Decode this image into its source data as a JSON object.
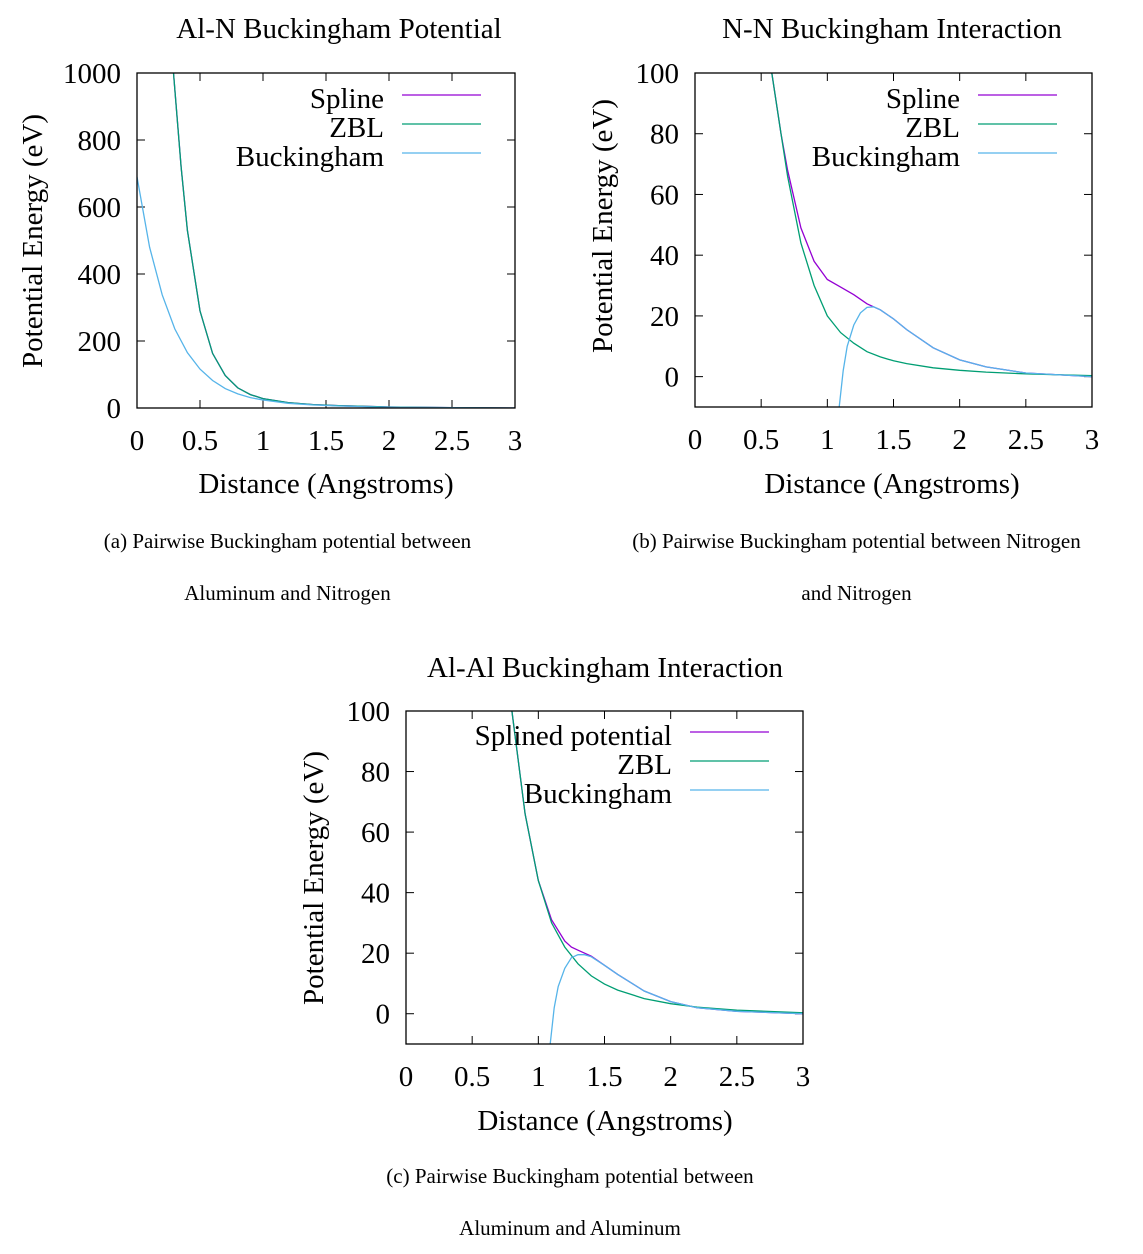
{
  "colors": {
    "spline": "#9400d3",
    "zbl": "#009e73",
    "buckingham": "#56b4e9",
    "axis": "#000000"
  },
  "chart_data": [
    {
      "type": "line",
      "title": "Al-N Buckingham Potential",
      "xlabel": "Distance (Angstroms)",
      "ylabel": "Potential Energy (eV)",
      "xlim": [
        0,
        3
      ],
      "ylim": [
        0,
        1000
      ],
      "xticks": [
        "0",
        "0.5",
        "1",
        "1.5",
        "2",
        "2.5",
        "3"
      ],
      "yticks": [
        "0",
        "200",
        "400",
        "600",
        "800",
        "1000"
      ],
      "xtick_values": [
        0,
        0.5,
        1,
        1.5,
        2,
        2.5,
        3
      ],
      "ytick_values": [
        0,
        200,
        400,
        600,
        800,
        1000
      ],
      "grid": false,
      "legend_position": "top-right",
      "series": [
        {
          "name": "Spline",
          "color": "#9400d3",
          "x": [
            0.29,
            0.35,
            0.4,
            0.5,
            0.6,
            0.7,
            0.8,
            0.9,
            1.0,
            1.2,
            1.4,
            1.6,
            2.0,
            2.5,
            3.0
          ],
          "y": [
            1000,
            720,
            530,
            290,
            163,
            97,
            60,
            40,
            28,
            16,
            10,
            7,
            3,
            1,
            0
          ]
        },
        {
          "name": "ZBL",
          "color": "#009e73",
          "x": [
            0.29,
            0.35,
            0.4,
            0.5,
            0.6,
            0.7,
            0.8,
            0.9,
            1.0,
            1.2,
            1.4,
            1.6,
            2.0,
            2.5,
            3.0
          ],
          "y": [
            1000,
            720,
            530,
            290,
            163,
            97,
            60,
            40,
            28,
            16,
            10,
            7,
            3,
            1,
            0
          ]
        },
        {
          "name": "Buckingham",
          "color": "#56b4e9",
          "x": [
            0.0,
            0.1,
            0.2,
            0.3,
            0.4,
            0.5,
            0.6,
            0.7,
            0.8,
            0.9,
            1.0,
            1.2,
            1.4,
            1.6,
            2.0,
            2.5,
            3.0
          ],
          "y": [
            690,
            480,
            338,
            236,
            165,
            116,
            82,
            58,
            42,
            31,
            24,
            14,
            9,
            6,
            2,
            1,
            0
          ]
        }
      ]
    },
    {
      "type": "line",
      "title": "N-N Buckingham Interaction",
      "xlabel": "Distance (Angstroms)",
      "ylabel": "Potential Energy (eV)",
      "xlim": [
        0,
        3
      ],
      "ylim": [
        -10,
        100
      ],
      "xticks": [
        "0",
        "0.5",
        "1",
        "1.5",
        "2",
        "2.5",
        "3"
      ],
      "yticks": [
        "0",
        "20",
        "40",
        "60",
        "80",
        "100"
      ],
      "xtick_values": [
        0,
        0.5,
        1,
        1.5,
        2,
        2.5,
        3
      ],
      "ytick_values": [
        0,
        20,
        40,
        60,
        80,
        100
      ],
      "grid": false,
      "legend_position": "top-right",
      "series": [
        {
          "name": "Spline",
          "color": "#9400d3",
          "x": [
            0.58,
            0.65,
            0.7,
            0.8,
            0.9,
            1.0,
            1.1,
            1.2,
            1.3,
            1.35,
            1.4,
            1.5,
            1.6,
            1.8,
            2.0,
            2.2,
            2.5,
            3.0
          ],
          "y": [
            100,
            80,
            68,
            49,
            38,
            32,
            29.5,
            27,
            24,
            23,
            22,
            19,
            15.5,
            9.5,
            5.5,
            3.2,
            1.2,
            0
          ]
        },
        {
          "name": "ZBL",
          "color": "#009e73",
          "x": [
            0.58,
            0.65,
            0.7,
            0.8,
            0.9,
            1.0,
            1.1,
            1.2,
            1.3,
            1.4,
            1.5,
            1.6,
            1.8,
            2.0,
            2.2,
            2.5,
            3.0
          ],
          "y": [
            100,
            80,
            66,
            44,
            30,
            20,
            14.5,
            11,
            8.2,
            6.5,
            5.2,
            4.3,
            2.9,
            2.1,
            1.5,
            0.9,
            0.3
          ]
        },
        {
          "name": "Buckingham",
          "color": "#56b4e9",
          "x": [
            1.09,
            1.12,
            1.15,
            1.2,
            1.25,
            1.3,
            1.35,
            1.4,
            1.5,
            1.6,
            1.8,
            2.0,
            2.2,
            2.5,
            3.0
          ],
          "y": [
            -10,
            2,
            10,
            17,
            21,
            22.8,
            23,
            22,
            19,
            15.5,
            9.5,
            5.5,
            3.2,
            1.2,
            0
          ]
        }
      ]
    },
    {
      "type": "line",
      "title": "Al-Al Buckingham Interaction",
      "xlabel": "Distance (Angstroms)",
      "ylabel": "Potential Energy (eV)",
      "xlim": [
        0,
        3
      ],
      "ylim": [
        -10,
        100
      ],
      "xticks": [
        "0",
        "0.5",
        "1",
        "1.5",
        "2",
        "2.5",
        "3"
      ],
      "yticks": [
        "0",
        "20",
        "40",
        "60",
        "80",
        "100"
      ],
      "xtick_values": [
        0,
        0.5,
        1,
        1.5,
        2,
        2.5,
        3
      ],
      "ytick_values": [
        0,
        20,
        40,
        60,
        80,
        100
      ],
      "grid": false,
      "legend_position": "top-right",
      "series": [
        {
          "name": "Splined potential",
          "color": "#9400d3",
          "x": [
            0.8,
            0.9,
            1.0,
            1.1,
            1.2,
            1.25,
            1.3,
            1.4,
            1.5,
            1.6,
            1.8,
            2.0,
            2.2,
            2.5,
            3.0
          ],
          "y": [
            100,
            66,
            44,
            31,
            24,
            22,
            21,
            19,
            16,
            13,
            7.5,
            4,
            2,
            0.8,
            0
          ]
        },
        {
          "name": "ZBL",
          "color": "#009e73",
          "x": [
            0.8,
            0.9,
            1.0,
            1.1,
            1.2,
            1.3,
            1.4,
            1.5,
            1.6,
            1.8,
            2.0,
            2.2,
            2.5,
            3.0
          ],
          "y": [
            100,
            66,
            44,
            30,
            22,
            16.5,
            12.5,
            9.8,
            7.8,
            5,
            3.3,
            2.2,
            1.2,
            0.3
          ]
        },
        {
          "name": "Buckingham",
          "color": "#56b4e9",
          "x": [
            1.09,
            1.12,
            1.15,
            1.2,
            1.25,
            1.3,
            1.35,
            1.4,
            1.5,
            1.6,
            1.8,
            2.0,
            2.2,
            2.5,
            3.0
          ],
          "y": [
            -10,
            2,
            9,
            15,
            18.5,
            19.5,
            19.5,
            18.8,
            16,
            13,
            7.5,
            4,
            2,
            0.8,
            0
          ]
        }
      ]
    }
  ],
  "captions": [
    {
      "line1": "(a) Pairwise Buckingham potential between",
      "line2": "Aluminum and Nitrogen"
    },
    {
      "line1": "(b) Pairwise Buckingham potential between Nitrogen",
      "line2": "and Nitrogen"
    },
    {
      "line1": "(c) Pairwise Buckingham potential between",
      "line2": "Aluminum and Aluminum"
    }
  ]
}
